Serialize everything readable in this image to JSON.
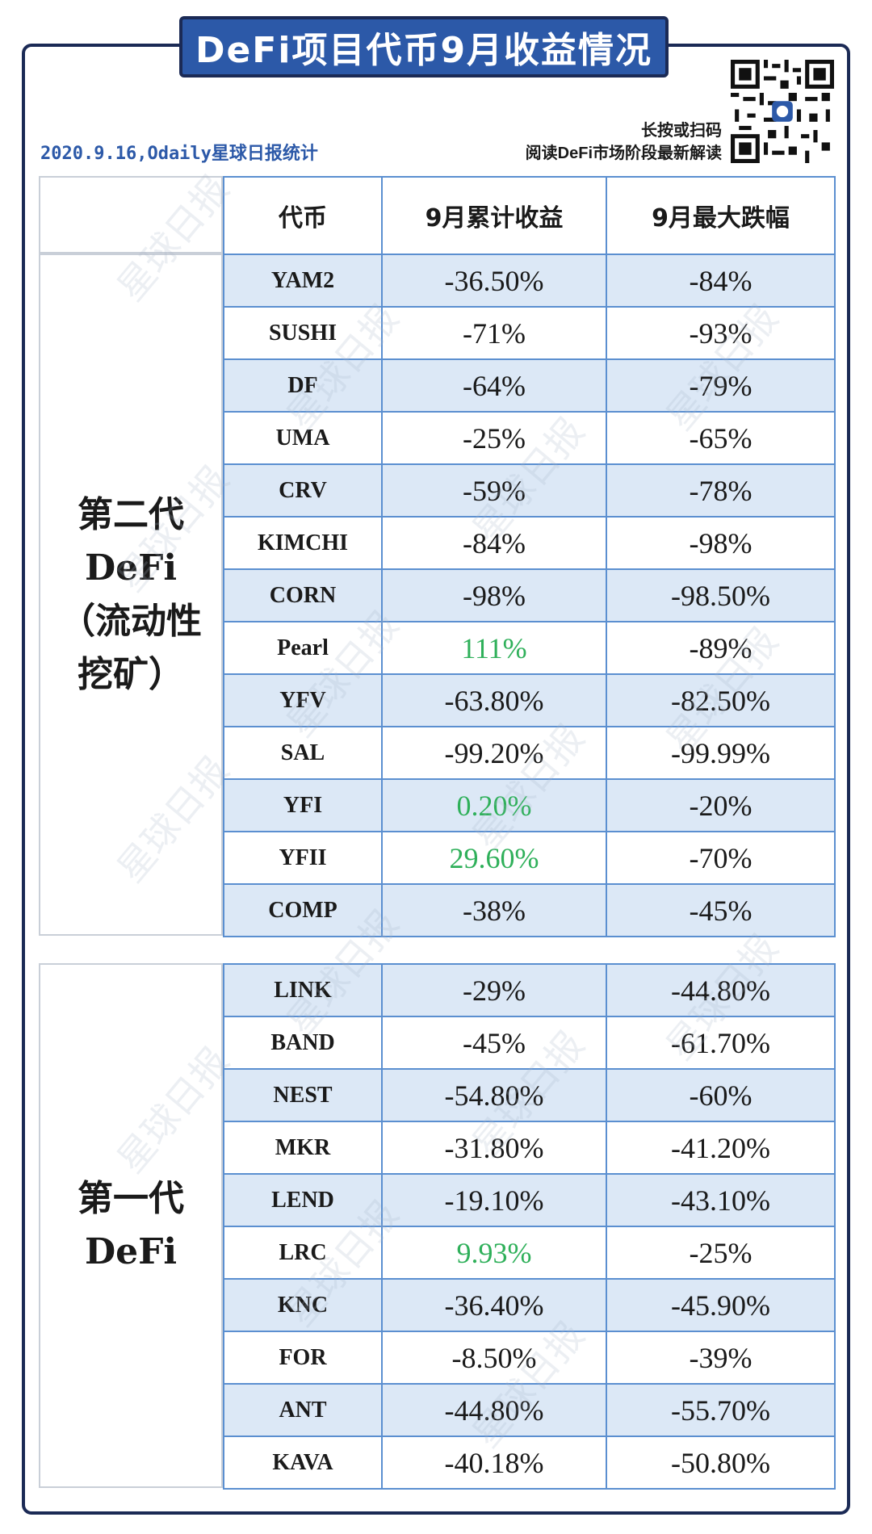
{
  "title": "DeFi项目代币9月收益情况",
  "source_line": "2020.9.16,Odaily星球日报统计",
  "qr_caption": [
    "长按或扫码",
    "阅读DeFi市场阶段最新解读"
  ],
  "watermark": "星球日报",
  "colors": {
    "positive": "#2fb05a",
    "header_blue": "#2c59a8",
    "row_shade": "#dce8f6",
    "grid": "#5b8fd0"
  },
  "chart_data": {
    "type": "table",
    "columns": [
      "代币",
      "9月累计收益",
      "9月最大跌幅"
    ],
    "groups": [
      {
        "label": "第二代\nDeFi\n（流动性\n挖矿）",
        "rows": [
          [
            "YAM2",
            "-36.50%",
            "-84%"
          ],
          [
            "SUSHI",
            "-71%",
            "-93%"
          ],
          [
            "DF",
            "-64%",
            "-79%"
          ],
          [
            "UMA",
            "-25%",
            "-65%"
          ],
          [
            "CRV",
            "-59%",
            "-78%"
          ],
          [
            "KIMCHI",
            "-84%",
            "-98%"
          ],
          [
            "CORN",
            "-98%",
            "-98.50%"
          ],
          [
            "Pearl",
            "111%",
            "-89%"
          ],
          [
            "YFV",
            "-63.80%",
            "-82.50%"
          ],
          [
            "SAL",
            "-99.20%",
            "-99.99%"
          ],
          [
            "YFI",
            "0.20%",
            "-20%"
          ],
          [
            "YFII",
            "29.60%",
            "-70%"
          ],
          [
            "COMP",
            "-38%",
            "-45%"
          ]
        ]
      },
      {
        "label": "第一代\nDeFi",
        "rows": [
          [
            "LINK",
            "-29%",
            "-44.80%"
          ],
          [
            "BAND",
            "-45%",
            "-61.70%"
          ],
          [
            "NEST",
            "-54.80%",
            "-60%"
          ],
          [
            "MKR",
            "-31.80%",
            "-41.20%"
          ],
          [
            "LEND",
            "-19.10%",
            "-43.10%"
          ],
          [
            "LRC",
            "9.93%",
            "-25%"
          ],
          [
            "KNC",
            "-36.40%",
            "-45.90%"
          ],
          [
            "FOR",
            "-8.50%",
            "-39%"
          ],
          [
            "ANT",
            "-44.80%",
            "-55.70%"
          ],
          [
            "KAVA",
            "-40.18%",
            "-50.80%"
          ]
        ]
      }
    ]
  }
}
